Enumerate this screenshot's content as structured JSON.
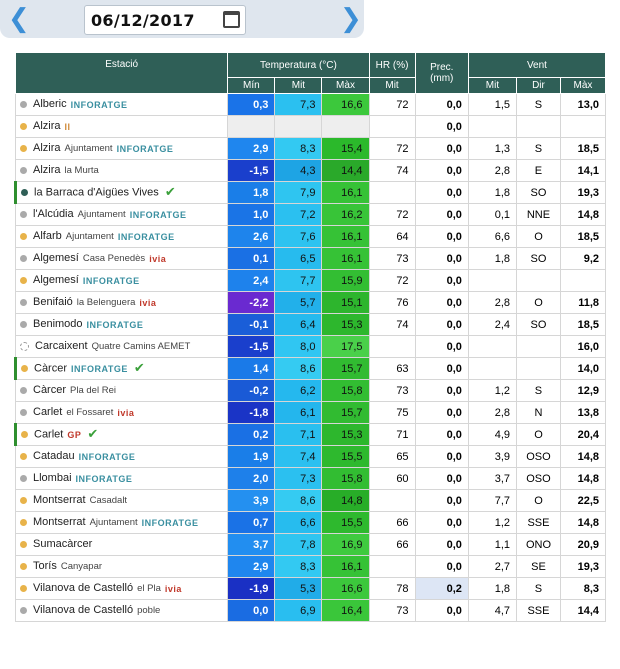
{
  "datebar": {
    "date": "06/12/2017",
    "prev_icon": "chevron-left-icon",
    "next_icon": "chevron-right-icon",
    "calendar_icon": "calendar-icon"
  },
  "table": {
    "headers": {
      "estacio": "Estació",
      "temp": "Temperatura (°C)",
      "hr": "HR (%)",
      "prec": "Prec.\n(mm)",
      "vent": "Vent"
    },
    "subheaders": {
      "min": "Mín",
      "mit": "Mit",
      "max": "Màx",
      "hr_mit": "Mit",
      "v_mit": "Mit",
      "dir": "Dir",
      "v_max": "Màx"
    },
    "rows": [
      {
        "name": "Alberic",
        "sub": "",
        "tag": "INFORATGE",
        "tagColor": "#3a8fa0",
        "dot": "#aaaaaa",
        "check": false,
        "min": "0,3",
        "mit": "7,3",
        "max": "16,6",
        "hr": "72",
        "prec": "0,0",
        "vmit": "1,5",
        "dir": "S",
        "vmax": "13,0",
        "cmin": "#1a73e8",
        "cmit": "#2bc0f0",
        "cmax": "#3cc83c"
      },
      {
        "name": "Alzira",
        "sub": "",
        "tag": "II",
        "tagColor": "#d08a3a",
        "dot": "#e8b34a",
        "check": false,
        "min": "",
        "mit": "",
        "max": "",
        "hr": "",
        "prec": "0,0",
        "vmit": "",
        "dir": "",
        "vmax": "",
        "cmin": "#eeeeee",
        "cmit": "#eeeeee",
        "cmax": "#eeeeee"
      },
      {
        "name": "Alzira",
        "sub": "Ajuntament",
        "tag": "INFORATGE",
        "tagColor": "#3a8fa0",
        "dot": "#e8b34a",
        "check": false,
        "min": "2,9",
        "mit": "8,3",
        "max": "15,4",
        "hr": "72",
        "prec": "0,0",
        "vmit": "1,3",
        "dir": "S",
        "vmax": "18,5",
        "cmin": "#1f86ee",
        "cmit": "#33c9f2",
        "cmax": "#2bb92b"
      },
      {
        "name": "Alzira",
        "sub": "la Murta",
        "tag": "",
        "tagColor": "",
        "dot": "#aaaaaa",
        "check": false,
        "min": "-1,5",
        "mit": "4,3",
        "max": "14,4",
        "hr": "74",
        "prec": "0,0",
        "vmit": "2,8",
        "dir": "E",
        "vmax": "14,1",
        "cmin": "#1a3fcc",
        "cmit": "#1ea4e4",
        "cmax": "#2aa92a"
      },
      {
        "name": "la Barraca d'Aigües Vives",
        "sub": "",
        "tag": "",
        "tagColor": "",
        "dot": "#2f5f57",
        "check": true,
        "min": "1,8",
        "mit": "7,9",
        "max": "16,1",
        "hr": "",
        "prec": "0,0",
        "vmit": "1,8",
        "dir": "SO",
        "vmax": "19,3",
        "cmin": "#1a7ee8",
        "cmit": "#2fc5f0",
        "cmax": "#36c236"
      },
      {
        "name": "l'Alcúdia",
        "sub": "Ajuntament",
        "tag": "INFORATGE",
        "tagColor": "#3a8fa0",
        "dot": "#aaaaaa",
        "check": false,
        "min": "1,0",
        "mit": "7,2",
        "max": "16,2",
        "hr": "72",
        "prec": "0,0",
        "vmit": "0,1",
        "dir": "NNE",
        "vmax": "14,8",
        "cmin": "#1a74e6",
        "cmit": "#2bc0f0",
        "cmax": "#38c438"
      },
      {
        "name": "Alfarb",
        "sub": "Ajuntament",
        "tag": "INFORATGE",
        "tagColor": "#3a8fa0",
        "dot": "#e8b34a",
        "check": false,
        "min": "2,6",
        "mit": "7,6",
        "max": "16,1",
        "hr": "64",
        "prec": "0,0",
        "vmit": "6,6",
        "dir": "O",
        "vmax": "18,5",
        "cmin": "#1e84ec",
        "cmit": "#2dc3f0",
        "cmax": "#36c236"
      },
      {
        "name": "Algemesí",
        "sub": "Casa Penedès",
        "tag": "ivia",
        "tagColor": "#c0392b",
        "dot": "#aaaaaa",
        "check": false,
        "min": "0,1",
        "mit": "6,5",
        "max": "16,1",
        "hr": "73",
        "prec": "0,0",
        "vmit": "1,8",
        "dir": "SO",
        "vmax": "9,2",
        "cmin": "#1a70e4",
        "cmit": "#27bbee",
        "cmax": "#36c236"
      },
      {
        "name": "Algemesí",
        "sub": "",
        "tag": "INFORATGE",
        "tagColor": "#3a8fa0",
        "dot": "#e8b34a",
        "check": false,
        "min": "2,4",
        "mit": "7,7",
        "max": "15,9",
        "hr": "72",
        "prec": "0,0",
        "vmit": "",
        "dir": "",
        "vmax": "",
        "cmin": "#1e82ec",
        "cmit": "#2ec4f0",
        "cmax": "#33be33"
      },
      {
        "name": "Benifaió",
        "sub": "la Belenguera",
        "tag": "ivia",
        "tagColor": "#c0392b",
        "dot": "#aaaaaa",
        "check": false,
        "min": "-2,2",
        "mit": "5,7",
        "max": "15,1",
        "hr": "76",
        "prec": "0,0",
        "vmit": "2,8",
        "dir": "O",
        "vmax": "11,8",
        "cmin": "#6a2ad0",
        "cmit": "#22b0ea",
        "cmax": "#2db52d"
      },
      {
        "name": "Benimodo",
        "sub": "",
        "tag": "INFORATGE",
        "tagColor": "#3a8fa0",
        "dot": "#aaaaaa",
        "check": false,
        "min": "-0,1",
        "mit": "6,4",
        "max": "15,3",
        "hr": "74",
        "prec": "0,0",
        "vmit": "2,4",
        "dir": "SO",
        "vmax": "18,5",
        "cmin": "#1a5ed8",
        "cmit": "#26baee",
        "cmax": "#2db72d"
      },
      {
        "name": "Carcaixent",
        "sub": "Quatre Camins AEMET",
        "tag": "",
        "tagColor": "",
        "dot": "#ffffff",
        "check": false,
        "min": "-1,5",
        "mit": "8,0",
        "max": "17,5",
        "hr": "",
        "prec": "0,0",
        "vmit": "",
        "dir": "",
        "vmax": "16,0",
        "cmin": "#1a3fcc",
        "cmit": "#30c6f2",
        "cmax": "#4ad04a"
      },
      {
        "name": "Càrcer",
        "sub": "",
        "tag": "INFORATGE",
        "tagColor": "#3a8fa0",
        "dot": "#e8b34a",
        "check": true,
        "min": "1,4",
        "mit": "8,6",
        "max": "15,7",
        "hr": "63",
        "prec": "0,0",
        "vmit": "",
        "dir": "",
        "vmax": "14,0",
        "cmin": "#1a7ae8",
        "cmit": "#35cbf2",
        "cmax": "#31bb31"
      },
      {
        "name": "Càrcer",
        "sub": "Pla del Rei",
        "tag": "",
        "tagColor": "",
        "dot": "#aaaaaa",
        "check": false,
        "min": "-0,2",
        "mit": "6,2",
        "max": "15,8",
        "hr": "73",
        "prec": "0,0",
        "vmit": "1,2",
        "dir": "S",
        "vmax": "12,9",
        "cmin": "#1a5ad6",
        "cmit": "#25b8ee",
        "cmax": "#32bd32"
      },
      {
        "name": "Carlet",
        "sub": "el Fossaret",
        "tag": "ivia",
        "tagColor": "#c0392b",
        "dot": "#aaaaaa",
        "check": false,
        "min": "-1,8",
        "mit": "6,1",
        "max": "15,7",
        "hr": "75",
        "prec": "0,0",
        "vmit": "2,8",
        "dir": "N",
        "vmax": "13,8",
        "cmin": "#1a34c6",
        "cmit": "#24b6ed",
        "cmax": "#31bb31"
      },
      {
        "name": "Carlet",
        "sub": "",
        "tag": "GP",
        "tagColor": "#c0392b",
        "dot": "#e8b34a",
        "check": true,
        "min": "0,2",
        "mit": "7,1",
        "max": "15,3",
        "hr": "71",
        "prec": "0,0",
        "vmit": "4,9",
        "dir": "O",
        "vmax": "20,4",
        "cmin": "#1a70e4",
        "cmit": "#2abfef",
        "cmax": "#2db72d"
      },
      {
        "name": "Catadau",
        "sub": "",
        "tag": "INFORATGE",
        "tagColor": "#3a8fa0",
        "dot": "#e8b34a",
        "check": false,
        "min": "1,9",
        "mit": "7,4",
        "max": "15,5",
        "hr": "65",
        "prec": "0,0",
        "vmit": "3,9",
        "dir": "OSO",
        "vmax": "14,8",
        "cmin": "#1a7ee8",
        "cmit": "#2bc0f0",
        "cmax": "#2eb92e"
      },
      {
        "name": "Llombai",
        "sub": "",
        "tag": "INFORATGE",
        "tagColor": "#3a8fa0",
        "dot": "#aaaaaa",
        "check": false,
        "min": "2,0",
        "mit": "7,3",
        "max": "15,8",
        "hr": "60",
        "prec": "0,0",
        "vmit": "3,7",
        "dir": "OSO",
        "vmax": "14,8",
        "cmin": "#1e80ea",
        "cmit": "#2bc0f0",
        "cmax": "#32bd32"
      },
      {
        "name": "Montserrat",
        "sub": "Casadalt",
        "tag": "",
        "tagColor": "",
        "dot": "#e8b34a",
        "check": false,
        "min": "3,9",
        "mit": "8,6",
        "max": "14,8",
        "hr": "",
        "prec": "0,0",
        "vmit": "7,7",
        "dir": "O",
        "vmax": "22,5",
        "cmin": "#2490f0",
        "cmit": "#35cbf2",
        "cmax": "#28ad28"
      },
      {
        "name": "Montserrat",
        "sub": "Ajuntament",
        "tag": "INFORATGE",
        "tagColor": "#3a8fa0",
        "dot": "#e8b34a",
        "check": false,
        "min": "0,7",
        "mit": "6,6",
        "max": "15,5",
        "hr": "66",
        "prec": "0,0",
        "vmit": "1,2",
        "dir": "SSE",
        "vmax": "14,8",
        "cmin": "#1a72e6",
        "cmit": "#27bcee",
        "cmax": "#2eb92e"
      },
      {
        "name": "Sumacàrcer",
        "sub": "",
        "tag": "",
        "tagColor": "",
        "dot": "#e8b34a",
        "check": false,
        "min": "3,7",
        "mit": "7,8",
        "max": "16,9",
        "hr": "66",
        "prec": "0,0",
        "vmit": "1,1",
        "dir": "ONO",
        "vmax": "20,9",
        "cmin": "#228ef0",
        "cmit": "#2fc5f0",
        "cmax": "#3fca3f"
      },
      {
        "name": "Torís",
        "sub": "Canyapar",
        "tag": "",
        "tagColor": "",
        "dot": "#e8b34a",
        "check": false,
        "min": "2,9",
        "mit": "8,3",
        "max": "16,1",
        "hr": "",
        "prec": "0,0",
        "vmit": "2,7",
        "dir": "SE",
        "vmax": "19,3",
        "cmin": "#1f86ee",
        "cmit": "#33c9f2",
        "cmax": "#36c236"
      },
      {
        "name": "Vilanova de Castelló",
        "sub": "el Pla",
        "tag": "ivia",
        "tagColor": "#c0392b",
        "dot": "#e8b34a",
        "check": false,
        "min": "-1,9",
        "mit": "5,3",
        "max": "16,6",
        "hr": "78",
        "prec": "0,2",
        "vmit": "1,8",
        "dir": "S",
        "vmax": "8,3",
        "cmin": "#1a30c4",
        "cmit": "#21ace8",
        "cmax": "#3cc83c"
      },
      {
        "name": "Vilanova de Castelló",
        "sub": "poble",
        "tag": "",
        "tagColor": "",
        "dot": "#aaaaaa",
        "check": false,
        "min": "0,0",
        "mit": "6,9",
        "max": "16,4",
        "hr": "73",
        "prec": "0,0",
        "vmit": "4,7",
        "dir": "SSE",
        "vmax": "14,4",
        "cmin": "#1a6ce2",
        "cmit": "#29bef0",
        "cmax": "#3ac63a"
      }
    ]
  }
}
